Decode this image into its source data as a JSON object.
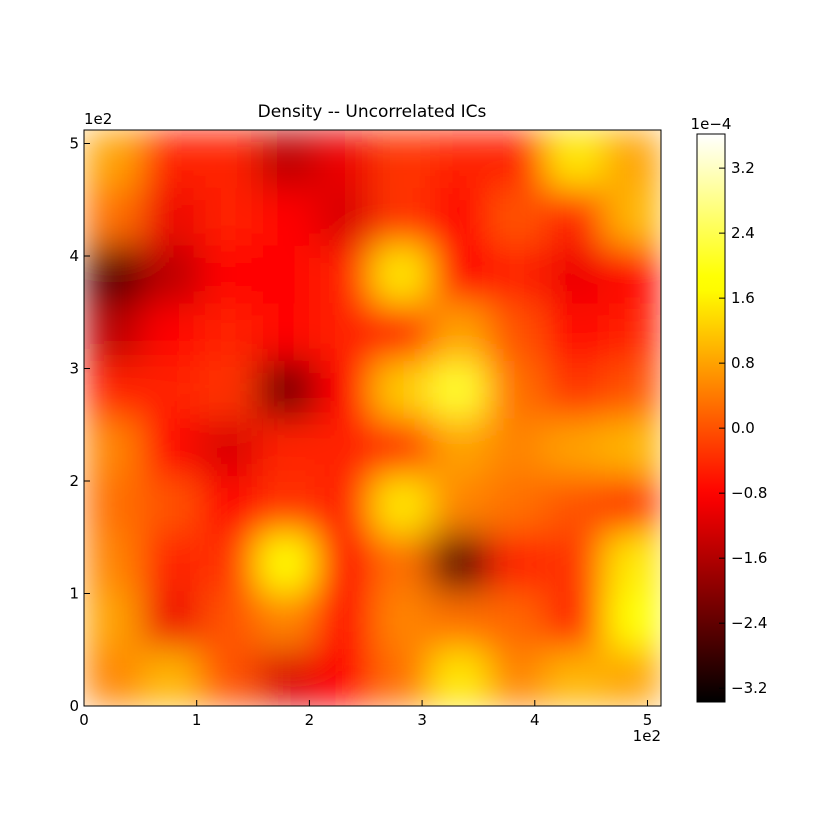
{
  "chart_data": {
    "type": "heatmap",
    "title": "Density -- Uncorrelated ICs",
    "colormap": "hot",
    "xlim": [
      0,
      5.12
    ],
    "xticks": [
      0,
      1,
      2,
      3,
      4,
      5
    ],
    "x_offset_label": "1e2",
    "ylim": [
      0,
      5.12
    ],
    "yticks": [
      0,
      1,
      2,
      3,
      4,
      5
    ],
    "y_offset_label": "1e2",
    "z": [
      [
        0.5,
        1,
        0,
        -1.2,
        -0.8,
        0.3,
        1.5,
        0.5,
        1,
        0.8
      ],
      [
        0.8,
        -1,
        0,
        0.5,
        -0.8,
        0.5,
        0.3,
        0.2,
        -0.5,
        1.8
      ],
      [
        0.5,
        -0.5,
        -0.3,
        1.8,
        -0.8,
        0.3,
        -2.5,
        -0.5,
        -0.3,
        1.5
      ],
      [
        0.3,
        0,
        -0.8,
        -0.3,
        -0.5,
        1.5,
        0.5,
        0.3,
        0,
        -0.3
      ],
      [
        0.5,
        -0.8,
        -1.2,
        -0.5,
        -0.5,
        -0.3,
        0.8,
        0.5,
        0.8,
        1
      ],
      [
        -0.5,
        -0.5,
        -0.3,
        -2.2,
        -0.8,
        1.2,
        2.2,
        0.3,
        -0.3,
        0
      ],
      [
        -1.5,
        -0.8,
        -0.5,
        -0.8,
        -0.5,
        -0.5,
        0.8,
        0,
        -0.8,
        -0.5
      ],
      [
        -2.5,
        -1.5,
        -0.8,
        -0.8,
        -0.5,
        1.5,
        -0.8,
        -0.5,
        -1,
        -0.8
      ],
      [
        0.3,
        -1,
        -0.5,
        -0.8,
        -1.2,
        -0.3,
        -0.8,
        0,
        -0.5,
        1
      ],
      [
        0.8,
        -0.5,
        -0.5,
        -1.5,
        -1,
        -0.3,
        -0.5,
        -0.5,
        1.5,
        0.8
      ]
    ],
    "colorbar": {
      "lim": [
        -3.37,
        3.62
      ],
      "offset_label": "1e−4",
      "ticks": [
        3.2,
        2.4,
        1.6,
        0.8,
        {
          "value": 0,
          "label": "0.0"
        },
        {
          "value": -0.8,
          "label": "−0.8"
        },
        {
          "value": -1.6,
          "label": "−1.6"
        },
        {
          "value": -2.4,
          "label": "−2.4"
        },
        {
          "value": -3.2,
          "label": "−3.2"
        }
      ]
    }
  }
}
